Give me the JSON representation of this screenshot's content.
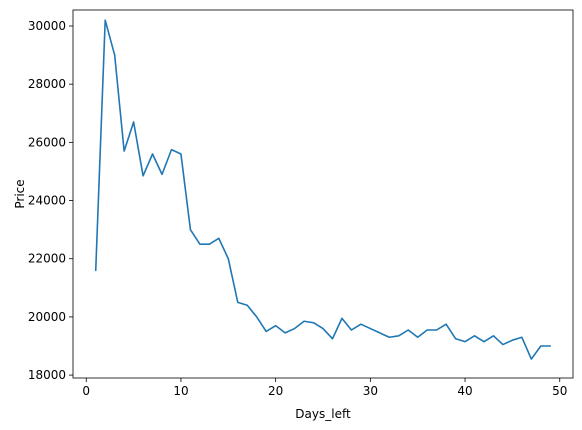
{
  "chart_data": {
    "type": "line",
    "title": "",
    "xlabel": "Days_left",
    "ylabel": "Price",
    "xlim": [
      -1.4,
      51.4
    ],
    "ylim": [
      17900,
      30550
    ],
    "xticks": [
      0,
      10,
      20,
      30,
      40,
      50
    ],
    "yticks": [
      18000,
      20000,
      22000,
      24000,
      26000,
      28000,
      30000
    ],
    "grid": false,
    "line_color": "#1f77b4",
    "series": [
      {
        "x": [
          1,
          2,
          3,
          4,
          5,
          6,
          7,
          8,
          9,
          10,
          11,
          12,
          13,
          14,
          15,
          16,
          17,
          18,
          19,
          20,
          21,
          22,
          23,
          24,
          25,
          26,
          27,
          28,
          29,
          30,
          31,
          32,
          33,
          34,
          35,
          36,
          37,
          38,
          39,
          40,
          41,
          42,
          43,
          44,
          45,
          46,
          47,
          48,
          49
        ],
        "values": [
          21600,
          30200,
          29000,
          25700,
          26700,
          24850,
          25600,
          24900,
          25750,
          25600,
          23000,
          22500,
          22500,
          22700,
          22000,
          20500,
          20400,
          20000,
          19500,
          19700,
          19450,
          19600,
          19850,
          19800,
          19600,
          19250,
          19950,
          19550,
          19750,
          19600,
          19450,
          19300,
          19350,
          19550,
          19300,
          19550,
          19550,
          19750,
          19250,
          19150,
          19350,
          19150,
          19350,
          19050,
          19200,
          19300,
          18550,
          19000,
          19000
        ]
      }
    ]
  }
}
